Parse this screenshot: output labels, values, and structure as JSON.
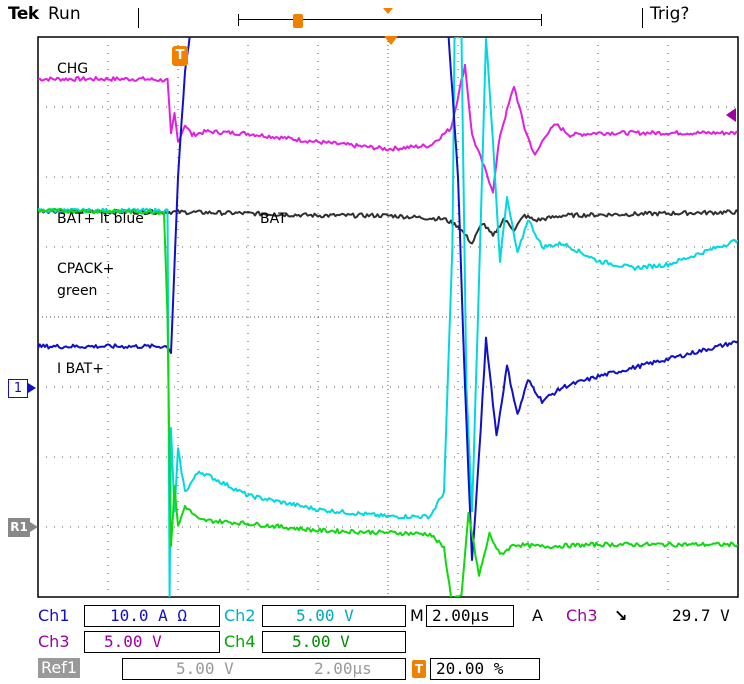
{
  "header": {
    "brand": "Tek",
    "state": "Run",
    "trigger_status": "Trig?"
  },
  "markers": {
    "trigger_badge": "T",
    "ch1_marker": "1",
    "ref1_marker": "R1"
  },
  "colors": {
    "grid_border": "#000000",
    "grid_dots": "#555555",
    "ch1": "#1010c8",
    "ch2": "#00d8e0",
    "ch3": "#e020e0",
    "ch4": "#10d810",
    "ref1": "#303030",
    "trigger": "#f08000",
    "ch3_text": "#a000a0"
  },
  "annotations": [
    {
      "text": "CHG",
      "key": "chg"
    },
    {
      "text": "BAT+ lt blue",
      "key": "bat_lt_blue"
    },
    {
      "text": "BAT",
      "key": "bat"
    },
    {
      "text": "CPACK+",
      "key": "cpack"
    },
    {
      "text": "green",
      "key": "green"
    },
    {
      "text": "I BAT+",
      "key": "ibat"
    }
  ],
  "status": {
    "ch1_label": "Ch1",
    "ch1_scale": "10.0 A Ω",
    "ch2_label": "Ch2",
    "ch2_scale": "5.00 V",
    "ch3_label": "Ch3",
    "ch3_scale": "5.00 V",
    "ch4_label": "Ch4",
    "ch4_scale": "5.00 V",
    "ref1_label": "Ref1",
    "ref1_scale": "5.00 V",
    "ref1_time": "2.00μs",
    "timebase_label": "M",
    "timebase": "2.00μs",
    "acq_label": "A",
    "trig_source": "Ch3",
    "trig_slope": "↘",
    "trig_level": "29.7 V",
    "trig_position_badge": "T",
    "trig_position": "20.00 %"
  },
  "chart_data": {
    "type": "line",
    "grid": {
      "x_divisions": 10,
      "y_divisions": 8,
      "grid_on": true
    },
    "x_range_div": [
      0,
      10
    ],
    "y_range_div": [
      0,
      8
    ],
    "series": [
      {
        "name": "CHG",
        "channel": "ch3",
        "points": [
          [
            0,
            7.4
          ],
          [
            1.5,
            7.4
          ],
          [
            1.85,
            7.38
          ],
          [
            1.9,
            6.6
          ],
          [
            1.95,
            6.9
          ],
          [
            2.0,
            6.5
          ],
          [
            2.1,
            6.75
          ],
          [
            2.2,
            6.6
          ],
          [
            2.4,
            6.65
          ],
          [
            3.0,
            6.62
          ],
          [
            4.0,
            6.5
          ],
          [
            5.0,
            6.4
          ],
          [
            5.6,
            6.45
          ],
          [
            5.9,
            6.7
          ],
          [
            6.1,
            7.6
          ],
          [
            6.2,
            6.6
          ],
          [
            6.5,
            5.8
          ],
          [
            6.6,
            6.6
          ],
          [
            6.8,
            7.3
          ],
          [
            6.95,
            6.7
          ],
          [
            7.1,
            6.3
          ],
          [
            7.25,
            6.6
          ],
          [
            7.4,
            6.75
          ],
          [
            7.6,
            6.6
          ],
          [
            8.0,
            6.63
          ],
          [
            9.0,
            6.63
          ],
          [
            10,
            6.63
          ]
        ]
      },
      {
        "name": "BAT",
        "channel": "ref1",
        "points": [
          [
            0,
            5.52
          ],
          [
            1.0,
            5.5
          ],
          [
            2.0,
            5.5
          ],
          [
            3.0,
            5.48
          ],
          [
            4.0,
            5.45
          ],
          [
            5.0,
            5.45
          ],
          [
            5.8,
            5.4
          ],
          [
            6.0,
            5.3
          ],
          [
            6.2,
            5.05
          ],
          [
            6.35,
            5.35
          ],
          [
            6.5,
            5.15
          ],
          [
            6.65,
            5.4
          ],
          [
            6.8,
            5.25
          ],
          [
            6.95,
            5.45
          ],
          [
            7.1,
            5.38
          ],
          [
            7.5,
            5.45
          ],
          [
            8.5,
            5.47
          ],
          [
            10,
            5.5
          ]
        ]
      },
      {
        "name": "BAT+ lt blue",
        "channel": "ch2",
        "points": [
          [
            0,
            5.52
          ],
          [
            1.85,
            5.52
          ],
          [
            1.88,
            0.0
          ],
          [
            1.9,
            2.4
          ],
          [
            1.95,
            1.2
          ],
          [
            2.0,
            2.1
          ],
          [
            2.1,
            1.5
          ],
          [
            2.3,
            1.8
          ],
          [
            3.0,
            1.45
          ],
          [
            4.0,
            1.25
          ],
          [
            5.0,
            1.15
          ],
          [
            5.6,
            1.15
          ],
          [
            5.8,
            1.5
          ],
          [
            5.92,
            5.0
          ],
          [
            5.95,
            8.0
          ],
          [
            6.05,
            8.0
          ],
          [
            6.12,
            3.0
          ],
          [
            6.2,
            1.2
          ],
          [
            6.3,
            4.5
          ],
          [
            6.4,
            8.0
          ],
          [
            6.5,
            6.5
          ],
          [
            6.6,
            4.8
          ],
          [
            6.7,
            5.7
          ],
          [
            6.85,
            4.9
          ],
          [
            7.0,
            5.4
          ],
          [
            7.2,
            5.0
          ],
          [
            7.5,
            5.05
          ],
          [
            8.0,
            4.8
          ],
          [
            8.5,
            4.7
          ],
          [
            9.0,
            4.75
          ],
          [
            10,
            5.1
          ]
        ]
      },
      {
        "name": "I BAT+",
        "channel": "ch1",
        "points": [
          [
            0,
            3.58
          ],
          [
            1.85,
            3.58
          ],
          [
            1.9,
            3.5
          ],
          [
            2.0,
            6.0
          ],
          [
            2.1,
            7.5
          ],
          [
            2.3,
            9.0
          ],
          [
            5.8,
            9.0
          ],
          [
            6.0,
            6.0
          ],
          [
            6.1,
            3.0
          ],
          [
            6.2,
            0.5
          ],
          [
            6.3,
            2.0
          ],
          [
            6.4,
            3.7
          ],
          [
            6.55,
            2.3
          ],
          [
            6.7,
            3.3
          ],
          [
            6.85,
            2.6
          ],
          [
            7.0,
            3.1
          ],
          [
            7.2,
            2.8
          ],
          [
            7.5,
            3.0
          ],
          [
            8.0,
            3.15
          ],
          [
            9.0,
            3.4
          ],
          [
            10,
            3.65
          ]
        ]
      },
      {
        "name": "CPACK+ green",
        "channel": "ch4",
        "points": [
          [
            0,
            5.52
          ],
          [
            1.8,
            5.5
          ],
          [
            1.85,
            4.0
          ],
          [
            1.88,
            1.8
          ],
          [
            1.9,
            0.7
          ],
          [
            1.95,
            1.6
          ],
          [
            2.0,
            1.0
          ],
          [
            2.1,
            1.3
          ],
          [
            2.3,
            1.1
          ],
          [
            3.0,
            1.05
          ],
          [
            4.0,
            0.95
          ],
          [
            5.0,
            0.92
          ],
          [
            5.6,
            0.9
          ],
          [
            5.8,
            0.7
          ],
          [
            5.9,
            0.0
          ],
          [
            6.05,
            0.0
          ],
          [
            6.15,
            1.2
          ],
          [
            6.3,
            0.3
          ],
          [
            6.45,
            0.9
          ],
          [
            6.6,
            0.6
          ],
          [
            6.8,
            0.75
          ],
          [
            7.2,
            0.72
          ],
          [
            8.0,
            0.75
          ],
          [
            10,
            0.75
          ]
        ]
      }
    ]
  }
}
